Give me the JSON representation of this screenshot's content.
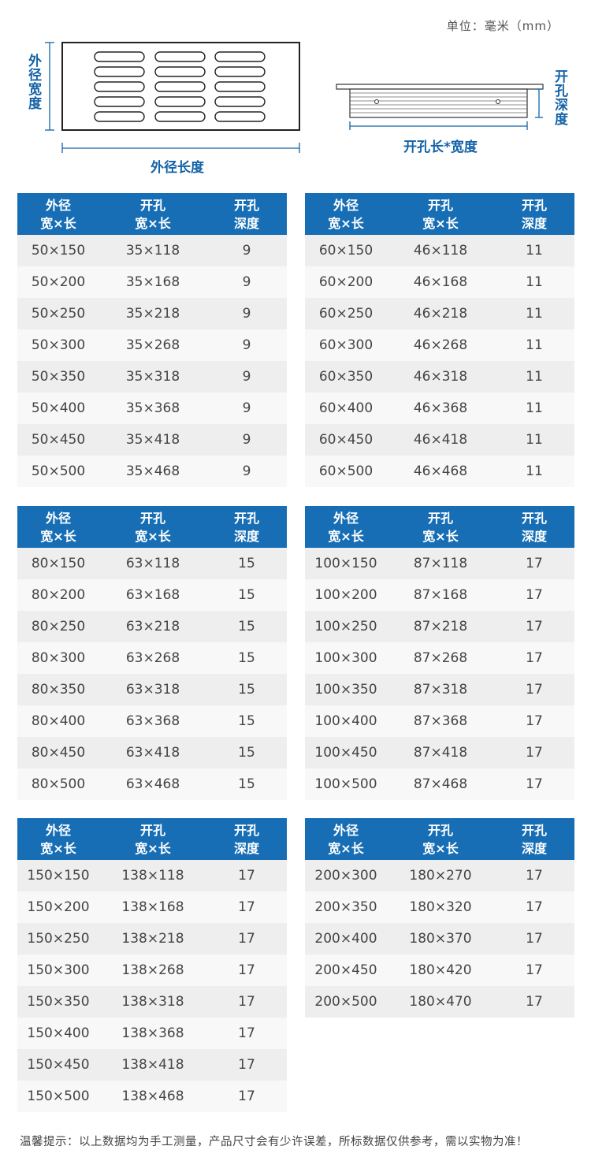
{
  "unit_label": "单位：毫米（mm）",
  "diagram": {
    "left_vertical_label": "外径宽度",
    "left_bottom_label": "外径长度",
    "right_vertical_label": "开孔深度",
    "right_bottom_label": "开孔长*宽度"
  },
  "table_header": {
    "col1_line1": "外径",
    "col1_line2": "宽×长",
    "col2_line1": "开孔",
    "col2_line2": "宽×长",
    "col3_line1": "开孔",
    "col3_line2": "深度"
  },
  "tables": [
    {
      "rows": [
        [
          "50×150",
          "35×118",
          "9"
        ],
        [
          "50×200",
          "35×168",
          "9"
        ],
        [
          "50×250",
          "35×218",
          "9"
        ],
        [
          "50×300",
          "35×268",
          "9"
        ],
        [
          "50×350",
          "35×318",
          "9"
        ],
        [
          "50×400",
          "35×368",
          "9"
        ],
        [
          "50×450",
          "35×418",
          "9"
        ],
        [
          "50×500",
          "35×468",
          "9"
        ]
      ]
    },
    {
      "rows": [
        [
          "60×150",
          "46×118",
          "11"
        ],
        [
          "60×200",
          "46×168",
          "11"
        ],
        [
          "60×250",
          "46×218",
          "11"
        ],
        [
          "60×300",
          "46×268",
          "11"
        ],
        [
          "60×350",
          "46×318",
          "11"
        ],
        [
          "60×400",
          "46×368",
          "11"
        ],
        [
          "60×450",
          "46×418",
          "11"
        ],
        [
          "60×500",
          "46×468",
          "11"
        ]
      ]
    },
    {
      "rows": [
        [
          "80×150",
          "63×118",
          "15"
        ],
        [
          "80×200",
          "63×168",
          "15"
        ],
        [
          "80×250",
          "63×218",
          "15"
        ],
        [
          "80×300",
          "63×268",
          "15"
        ],
        [
          "80×350",
          "63×318",
          "15"
        ],
        [
          "80×400",
          "63×368",
          "15"
        ],
        [
          "80×450",
          "63×418",
          "15"
        ],
        [
          "80×500",
          "63×468",
          "15"
        ]
      ]
    },
    {
      "rows": [
        [
          "100×150",
          "87×118",
          "17"
        ],
        [
          "100×200",
          "87×168",
          "17"
        ],
        [
          "100×250",
          "87×218",
          "17"
        ],
        [
          "100×300",
          "87×268",
          "17"
        ],
        [
          "100×350",
          "87×318",
          "17"
        ],
        [
          "100×400",
          "87×368",
          "17"
        ],
        [
          "100×450",
          "87×418",
          "17"
        ],
        [
          "100×500",
          "87×468",
          "17"
        ]
      ]
    },
    {
      "rows": [
        [
          "150×150",
          "138×118",
          "17"
        ],
        [
          "150×200",
          "138×168",
          "17"
        ],
        [
          "150×250",
          "138×218",
          "17"
        ],
        [
          "150×300",
          "138×268",
          "17"
        ],
        [
          "150×350",
          "138×318",
          "17"
        ],
        [
          "150×400",
          "138×368",
          "17"
        ],
        [
          "150×450",
          "138×418",
          "17"
        ],
        [
          "150×500",
          "138×468",
          "17"
        ]
      ]
    },
    {
      "rows": [
        [
          "200×300",
          "180×270",
          "17"
        ],
        [
          "200×350",
          "180×320",
          "17"
        ],
        [
          "200×400",
          "180×370",
          "17"
        ],
        [
          "200×450",
          "180×420",
          "17"
        ],
        [
          "200×500",
          "180×470",
          "17"
        ]
      ]
    }
  ],
  "footer_note": "温馨提示：以上数据均为手工测量，产品尺寸会有少许误差，所标数据仅供参考，需以实物为准！",
  "colors": {
    "header_bg": "#176eb5",
    "label_blue": "#1463a8",
    "row_odd": "#eeeeee",
    "row_even": "#f8f8f8"
  }
}
